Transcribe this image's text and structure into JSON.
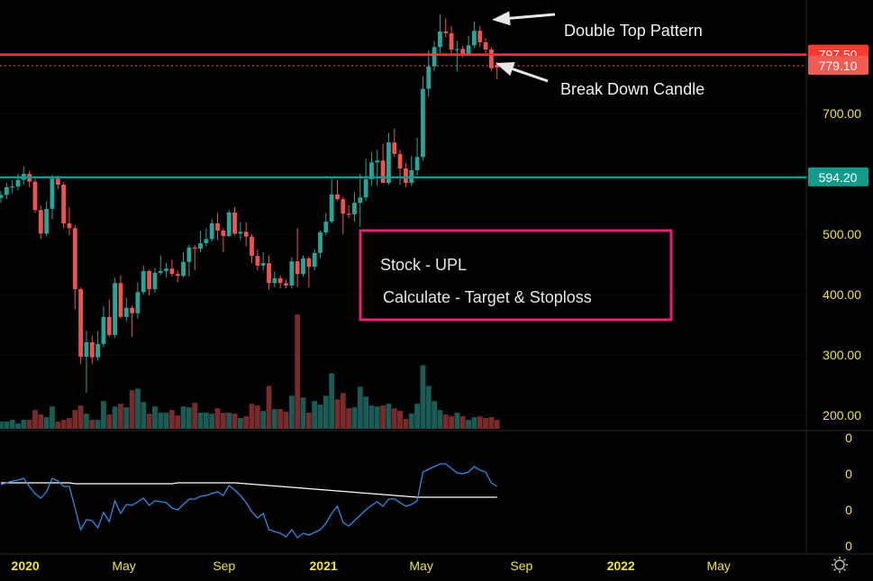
{
  "chart_data": {
    "type": "candlestick",
    "symbol_note": "Stock - UPL",
    "interval": "weekly",
    "colors": {
      "up": "#26a69a",
      "down": "#ef5350",
      "volume_up": "#1a5c55",
      "volume_down": "#7a2a2a",
      "indicator": "#2b8ce6",
      "indicator_ma": "#ffffff",
      "axis_text": "#f2e437",
      "annotation_box": "#e91e74",
      "resistance": "#ff3b30",
      "support": "#139c8c"
    },
    "price_axis": {
      "ticks": [
        "700.00",
        "500.00",
        "400.00",
        "300.00",
        "200.00"
      ],
      "range": [
        200,
        870
      ]
    },
    "time_axis": {
      "ticks": [
        {
          "label": "2020",
          "date": "2020-01-01"
        },
        {
          "label": "May",
          "date": "2020-05-01"
        },
        {
          "label": "Sep",
          "date": "2020-09-01"
        },
        {
          "label": "2021",
          "date": "2021-01-01"
        },
        {
          "label": "May",
          "date": "2021-05-01"
        },
        {
          "label": "Sep",
          "date": "2021-09-01"
        },
        {
          "label": "2022",
          "date": "2022-01-01"
        },
        {
          "label": "May",
          "date": "2022-05-01"
        }
      ]
    },
    "horizontal_lines": [
      {
        "price": 797.5,
        "label": "797.50",
        "style": "solid",
        "color": "#ff3b30"
      },
      {
        "price": 779.1,
        "label": "779.10",
        "style": "dotted",
        "color": "#f25b52"
      },
      {
        "price": 594.2,
        "label": "594.20",
        "style": "solid",
        "color": "#139c8c"
      }
    ],
    "candles_columns": [
      "date",
      "open",
      "high",
      "low",
      "close",
      "volume_relative"
    ],
    "candles": [
      [
        "2019-12-02",
        560,
        572,
        552,
        565,
        8
      ],
      [
        "2019-12-09",
        565,
        585,
        558,
        578,
        8
      ],
      [
        "2019-12-16",
        578,
        590,
        568,
        579,
        10
      ],
      [
        "2019-12-23",
        579,
        600,
        573,
        590,
        6
      ],
      [
        "2019-12-30",
        590,
        612,
        582,
        600,
        10
      ],
      [
        "2020-01-06",
        600,
        605,
        578,
        587,
        10
      ],
      [
        "2020-01-13",
        587,
        592,
        535,
        540,
        21
      ],
      [
        "2020-01-20",
        540,
        548,
        492,
        501,
        16
      ],
      [
        "2020-01-27",
        501,
        555,
        497,
        542,
        13
      ],
      [
        "2020-02-03",
        542,
        598,
        525,
        592,
        25
      ],
      [
        "2020-02-10",
        592,
        597,
        575,
        582,
        8
      ],
      [
        "2020-02-17",
        582,
        586,
        510,
        518,
        10
      ],
      [
        "2020-02-24",
        518,
        545,
        498,
        510,
        12
      ],
      [
        "2020-03-02",
        510,
        515,
        376,
        409,
        21
      ],
      [
        "2020-03-09",
        409,
        412,
        285,
        297,
        26
      ],
      [
        "2020-03-16",
        297,
        340,
        237,
        321,
        17
      ],
      [
        "2020-03-23",
        321,
        332,
        285,
        296,
        10
      ],
      [
        "2020-03-30",
        296,
        340,
        290,
        318,
        10
      ],
      [
        "2020-04-06",
        318,
        380,
        312,
        363,
        31
      ],
      [
        "2020-04-13",
        363,
        392,
        330,
        333,
        16
      ],
      [
        "2020-04-20",
        333,
        428,
        328,
        419,
        25
      ],
      [
        "2020-04-27",
        419,
        432,
        360,
        363,
        28
      ],
      [
        "2020-05-04",
        363,
        395,
        356,
        378,
        24
      ],
      [
        "2020-05-11",
        378,
        382,
        330,
        369,
        43
      ],
      [
        "2020-05-18",
        369,
        420,
        360,
        404,
        45
      ],
      [
        "2020-05-25",
        404,
        448,
        400,
        439,
        30
      ],
      [
        "2020-06-01",
        439,
        441,
        398,
        409,
        17
      ],
      [
        "2020-06-08",
        409,
        444,
        403,
        436,
        25
      ],
      [
        "2020-06-15",
        436,
        465,
        432,
        439,
        18
      ],
      [
        "2020-06-22",
        439,
        452,
        428,
        443,
        18
      ],
      [
        "2020-06-29",
        443,
        458,
        430,
        434,
        21
      ],
      [
        "2020-07-06",
        434,
        440,
        420,
        431,
        15
      ],
      [
        "2020-07-13",
        431,
        470,
        428,
        454,
        25
      ],
      [
        "2020-07-20",
        454,
        483,
        430,
        478,
        24
      ],
      [
        "2020-07-27",
        478,
        482,
        440,
        476,
        29
      ],
      [
        "2020-08-03",
        476,
        505,
        470,
        485,
        18
      ],
      [
        "2020-08-10",
        485,
        510,
        480,
        492,
        18
      ],
      [
        "2020-08-17",
        492,
        525,
        488,
        518,
        17
      ],
      [
        "2020-08-24",
        518,
        535,
        490,
        506,
        23
      ],
      [
        "2020-08-31",
        506,
        510,
        470,
        497,
        18
      ],
      [
        "2020-09-07",
        497,
        540,
        495,
        536,
        18
      ],
      [
        "2020-09-14",
        536,
        545,
        498,
        501,
        17
      ],
      [
        "2020-09-21",
        501,
        520,
        490,
        504,
        12
      ],
      [
        "2020-09-28",
        504,
        520,
        480,
        496,
        14
      ],
      [
        "2020-10-05",
        496,
        500,
        452,
        464,
        28
      ],
      [
        "2020-10-12",
        464,
        475,
        440,
        448,
        26
      ],
      [
        "2020-10-19",
        448,
        470,
        440,
        452,
        20
      ],
      [
        "2020-10-26",
        452,
        465,
        408,
        419,
        48
      ],
      [
        "2020-11-02",
        419,
        438,
        412,
        427,
        22
      ],
      [
        "2020-11-09",
        427,
        432,
        410,
        419,
        22
      ],
      [
        "2020-11-16",
        419,
        425,
        410,
        415,
        19
      ],
      [
        "2020-11-23",
        415,
        462,
        410,
        455,
        37
      ],
      [
        "2020-11-30",
        455,
        510,
        412,
        434,
        128
      ],
      [
        "2020-12-07",
        434,
        465,
        430,
        460,
        35
      ],
      [
        "2020-12-14",
        460,
        463,
        412,
        446,
        18
      ],
      [
        "2020-12-21",
        446,
        475,
        440,
        469,
        31
      ],
      [
        "2020-12-28",
        469,
        506,
        460,
        503,
        27
      ],
      [
        "2021-01-04",
        503,
        535,
        498,
        521,
        37
      ],
      [
        "2021-01-11",
        521,
        595,
        518,
        566,
        62
      ],
      [
        "2021-01-18",
        566,
        590,
        555,
        558,
        33
      ],
      [
        "2021-01-25",
        558,
        562,
        500,
        534,
        40
      ],
      [
        "2021-02-01",
        534,
        548,
        527,
        533,
        23
      ],
      [
        "2021-02-08",
        533,
        570,
        520,
        552,
        24
      ],
      [
        "2021-02-15",
        552,
        600,
        512,
        561,
        47
      ],
      [
        "2021-02-22",
        561,
        625,
        555,
        591,
        36
      ],
      [
        "2021-03-01",
        591,
        636,
        580,
        619,
        26
      ],
      [
        "2021-03-08",
        619,
        640,
        580,
        622,
        25
      ],
      [
        "2021-03-15",
        622,
        650,
        585,
        585,
        26
      ],
      [
        "2021-03-22",
        585,
        668,
        582,
        652,
        28
      ],
      [
        "2021-03-29",
        652,
        675,
        628,
        633,
        23
      ],
      [
        "2021-04-05",
        633,
        640,
        582,
        609,
        20
      ],
      [
        "2021-04-12",
        609,
        618,
        578,
        585,
        11
      ],
      [
        "2021-04-19",
        585,
        630,
        580,
        606,
        17
      ],
      [
        "2021-04-26",
        606,
        660,
        598,
        628,
        28
      ],
      [
        "2021-05-03",
        628,
        762,
        622,
        741,
        71
      ],
      [
        "2021-05-10",
        741,
        805,
        728,
        778,
        48
      ],
      [
        "2021-05-17",
        778,
        820,
        770,
        810,
        31
      ],
      [
        "2021-05-24",
        810,
        864,
        800,
        836,
        21
      ],
      [
        "2021-05-31",
        836,
        858,
        826,
        833,
        16
      ],
      [
        "2021-06-07",
        833,
        845,
        795,
        806,
        14
      ],
      [
        "2021-06-14",
        806,
        820,
        770,
        807,
        18
      ],
      [
        "2021-06-21",
        807,
        812,
        793,
        798,
        14
      ],
      [
        "2021-06-28",
        798,
        828,
        795,
        813,
        10
      ],
      [
        "2021-07-05",
        813,
        852,
        808,
        837,
        13
      ],
      [
        "2021-07-12",
        837,
        845,
        810,
        818,
        14
      ],
      [
        "2021-07-19",
        818,
        825,
        800,
        806,
        12
      ],
      [
        "2021-07-26",
        806,
        810,
        770,
        775,
        13
      ],
      [
        "2021-08-02",
        781,
        785,
        757,
        776,
        10
      ]
    ],
    "indicator": {
      "axis_ticks": [
        "0",
        "0",
        "0",
        "0"
      ],
      "axis_range": [
        20,
        80
      ],
      "line": [
        54,
        55,
        56,
        56.5,
        57.5,
        53,
        49,
        46.5,
        50,
        57.5,
        56,
        53,
        53,
        41,
        29,
        34.5,
        34,
        30,
        38.5,
        33.5,
        45,
        38,
        43,
        42.5,
        44.5,
        46.5,
        42.5,
        45,
        44.5,
        44,
        41,
        40,
        43,
        46,
        46,
        47.5,
        48,
        49,
        50,
        48,
        53.5,
        51,
        48,
        44,
        39,
        35.5,
        38,
        29,
        28,
        27,
        25,
        29,
        24.5,
        27,
        26,
        27.5,
        29,
        32.5,
        38,
        42,
        33,
        31,
        34,
        37,
        40,
        42.5,
        44.5,
        42,
        46,
        46,
        44,
        42,
        43,
        45,
        61,
        62.5,
        64,
        65.5,
        65.5,
        63,
        60.5,
        60,
        61,
        64,
        62,
        61,
        55,
        53
      ],
      "ma": [
        55,
        55,
        55,
        55,
        55,
        55,
        55,
        55,
        55,
        55,
        55,
        55,
        55,
        54.5,
        54.5,
        54.5,
        54.5,
        54.5,
        54.5,
        54.5,
        54.5,
        54.5,
        54.5,
        54.5,
        54.5,
        54.5,
        54.5,
        54.5,
        54.5,
        54.5,
        54.5,
        55,
        55,
        55,
        55,
        55,
        55,
        55,
        55,
        55,
        55,
        55,
        54.75,
        54.5,
        54.25,
        54,
        53.75,
        53.5,
        53.25,
        53,
        52.75,
        52.5,
        52.25,
        52,
        51.75,
        51.5,
        51.25,
        51,
        50.75,
        50.5,
        50.25,
        50,
        49.75,
        49.5,
        49.25,
        49,
        48.75,
        48.5,
        48.25,
        48,
        47.75,
        47.5,
        47.25,
        47,
        47,
        47,
        47,
        47,
        47,
        47,
        47,
        47,
        47,
        47,
        47,
        47,
        47,
        47
      ]
    },
    "annotations": [
      {
        "text": "Double Top Pattern",
        "arrow_to_date": "2021-05-31"
      },
      {
        "text": "Break Down Candle",
        "arrow_to_date": "2021-07-26"
      }
    ],
    "text_box": {
      "lines": [
        "Stock - UPL",
        "Calculate - Target & Stoploss"
      ]
    }
  },
  "ui": {
    "settings_icon": "gear-icon"
  }
}
